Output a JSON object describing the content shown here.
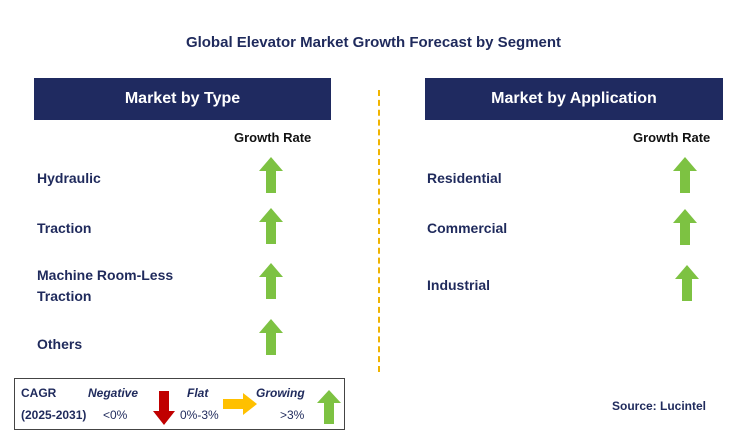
{
  "title": "Global Elevator Market Growth Forecast by Segment",
  "left_panel": {
    "header": "Market by Type",
    "growth_label": "Growth Rate",
    "rows": [
      {
        "label_line1": "Hydraulic",
        "label_line2": "",
        "trend": "growing"
      },
      {
        "label_line1": "Traction",
        "label_line2": "",
        "trend": "growing"
      },
      {
        "label_line1": "Machine Room-Less",
        "label_line2": "Traction",
        "trend": "growing"
      },
      {
        "label_line1": "Others",
        "label_line2": "",
        "trend": "growing"
      }
    ]
  },
  "right_panel": {
    "header": "Market by Application",
    "growth_label": "Growth Rate",
    "rows": [
      {
        "label_line1": "Residential",
        "trend": "growing"
      },
      {
        "label_line1": "Commercial",
        "trend": "growing"
      },
      {
        "label_line1": "Industrial",
        "trend": "growing"
      }
    ]
  },
  "legend": {
    "cagr_label": "CAGR",
    "period": "(2025-2031)",
    "negative_label": "Negative",
    "negative_range": "<0%",
    "flat_label": "Flat",
    "flat_range": "0%-3%",
    "growing_label": "Growing",
    "growing_range": ">3%"
  },
  "source": "Source: Lucintel",
  "colors": {
    "header_bg": "#1f2a60",
    "text": "#1f2a5c",
    "growing_arrow": "#7dc242",
    "negative_arrow": "#c00000",
    "flat_arrow": "#ffc000",
    "divider": "#f0b400"
  },
  "icons": {
    "growing": "up-arrow-icon",
    "negative": "down-arrow-icon",
    "flat": "right-arrow-icon"
  }
}
